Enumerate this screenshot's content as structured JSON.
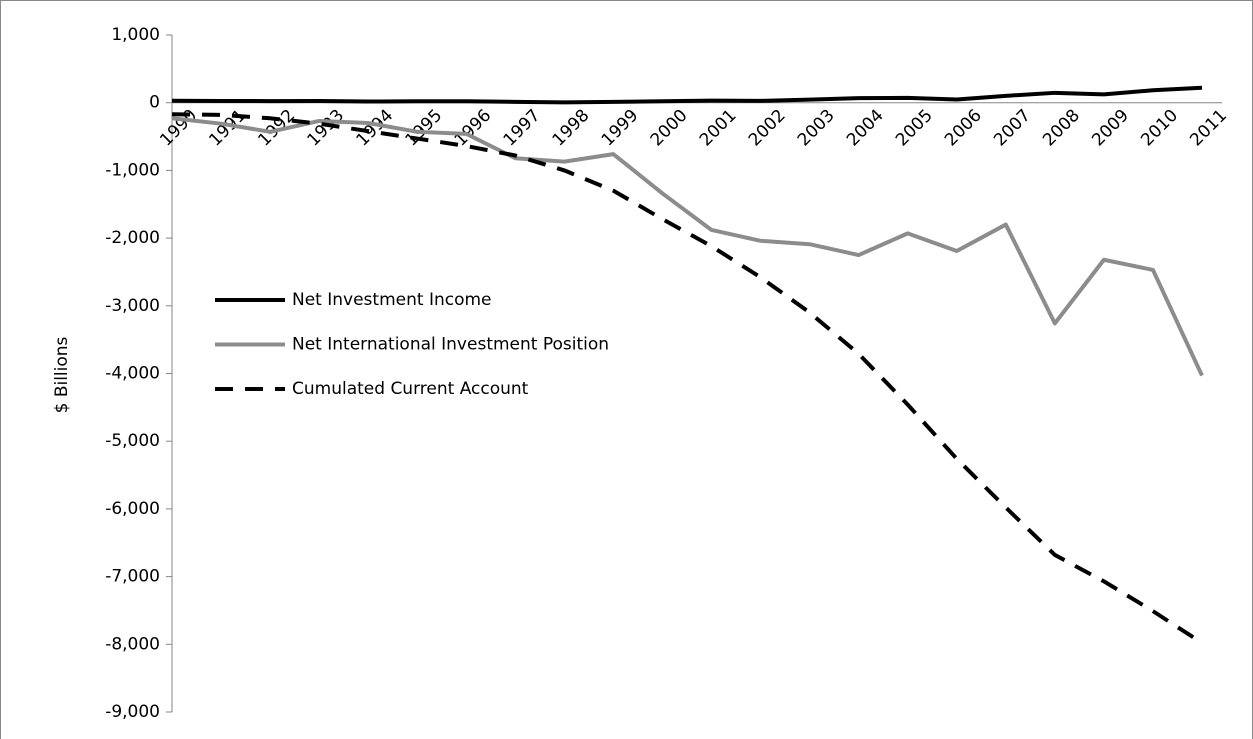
{
  "chart_data": {
    "type": "line",
    "y_label": "$ Billions",
    "categories": [
      "1990",
      "1991",
      "1992",
      "1993",
      "1994",
      "1995",
      "1996",
      "1997",
      "1998",
      "1999",
      "2000",
      "2001",
      "2002",
      "2003",
      "2004",
      "2005",
      "2006",
      "2007",
      "2008",
      "2009",
      "2010",
      "2011"
    ],
    "series": [
      {
        "name": "Net Investment Income",
        "color": "#000000",
        "dash": "solid",
        "values": [
          28,
          25,
          24,
          25,
          17,
          21,
          22,
          12,
          4,
          13,
          21,
          31,
          27,
          45,
          67,
          72,
          48,
          101,
          146,
          123,
          184,
          221
        ]
      },
      {
        "name": "Net International Investment Position",
        "color": "#8c8c8c",
        "dash": "solid",
        "values": [
          -230,
          -310,
          -430,
          -270,
          -300,
          -430,
          -460,
          -820,
          -870,
          -760,
          -1340,
          -1880,
          -2040,
          -2090,
          -2250,
          -1930,
          -2190,
          -1800,
          -3260,
          -2320,
          -2470,
          -4030
        ]
      },
      {
        "name": "Cumulated Current Account",
        "color": "#000000",
        "dash": "dashed",
        "values": [
          -170,
          -180,
          -230,
          -310,
          -420,
          -530,
          -640,
          -780,
          -1000,
          -1300,
          -1720,
          -2120,
          -2580,
          -3100,
          -3710,
          -4460,
          -5260,
          -5980,
          -6680,
          -7070,
          -7510,
          -7980
        ]
      }
    ],
    "ylim": [
      -9000,
      1000
    ],
    "yticks": [
      {
        "value": 1000,
        "label": "1,000"
      },
      0,
      {
        "value": -1000,
        "label": "-1,000"
      },
      {
        "value": -2000,
        "label": "-2,000"
      },
      {
        "value": -3000,
        "label": "-3,000"
      },
      {
        "value": -4000,
        "label": "-4,000"
      },
      {
        "value": -5000,
        "label": "-5,000"
      },
      {
        "value": -6000,
        "label": "-6,000"
      },
      {
        "value": -7000,
        "label": "-7,000"
      },
      {
        "value": -8000,
        "label": "-8,000"
      },
      {
        "value": -9000,
        "label": "-9,000"
      }
    ],
    "grid": false,
    "legend": "left"
  }
}
